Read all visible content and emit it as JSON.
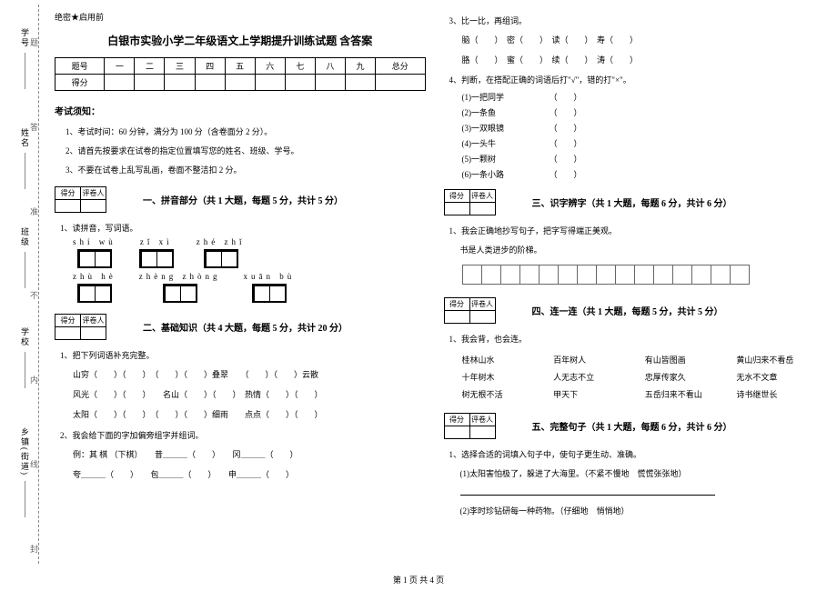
{
  "binding": {
    "labels": [
      "乡镇(街道)",
      "学校",
      "班级",
      "姓名",
      "学号"
    ],
    "marks": [
      "封",
      "线",
      "内",
      "不",
      "准",
      "答",
      "题"
    ]
  },
  "header": {
    "secret": "绝密★启用前",
    "title": "白银市实验小学二年级语文上学期提升训练试题 含答案"
  },
  "score_table": {
    "row1": [
      "题号",
      "一",
      "二",
      "三",
      "四",
      "五",
      "六",
      "七",
      "八",
      "九",
      "总分"
    ],
    "row2_label": "得分"
  },
  "notice": {
    "head": "考试须知：",
    "items": [
      "1、考试时间：60 分钟，满分为 100 分（含卷面分 2 分）。",
      "2、请首先按要求在试卷的指定位置填写您的姓名、班级、学号。",
      "3、不要在试卷上乱写乱画，卷面不整洁扣 2 分。"
    ]
  },
  "score_box": {
    "c1": "得分",
    "c2": "评卷人"
  },
  "sec1": {
    "title": "一、拼音部分（共 1 大题，每题 5 分，共计 5 分）",
    "q1": "1、读拼音，写词语。",
    "pinyin": [
      [
        "shí  wù",
        "zǐ  xì",
        "zhé  zhǐ"
      ],
      [
        "zhù  hè",
        "zhèng zhòng",
        "xuān  bù"
      ]
    ]
  },
  "sec2": {
    "title": "二、基础知识（共 4 大题，每题 5 分，共计 20 分）",
    "q1": "1、把下列词语补充完整。",
    "lines": [
      "山穷（　　）（　　）　（　　）（　　）叠翠　　（　　）（　　）云散",
      "风光（　　）（　　）　　名山（　　）（　　）　热情（　　）（　　）",
      "太阳（　　）（　　）　（　　）（　　）细雨　　点点（　　）（　　）"
    ],
    "q2": "2、我会给下面的字加偏旁组字并组词。",
    "example": "例：其 棋 （下棋）　　昔＿＿＿（　　）　　冈＿＿＿（　　）",
    "line2b": "夸＿＿＿（　　）　　包＿＿＿（　　）　　申＿＿＿（　　）",
    "q3": "3、比一比，再组词。",
    "pairs": [
      "脑（　　）　密（　　）　读（　　）　寿（　　）",
      "胳（　　）　蜜（　　）　续（　　）　涛（　　）"
    ],
    "q4": "4、判断，在搭配正确的词语后打\"√\"，错的打\"×\"。",
    "tf": [
      "(1)一把同学　　　　　　（　　）",
      "(2)一条鱼　　　　　　　（　　）",
      "(3)一双眼镜　　　　　　（　　）",
      "(4)一头牛　　　　　　　（　　）",
      "(5)一颗树　　　　　　　（　　）",
      "(6)一条小路　　　　　　（　　）"
    ]
  },
  "sec3": {
    "title": "三、识字辨字（共 1 大题，每题 6 分，共计 6 分）",
    "q1": "1、我会正确地抄写句子，把字写得端正美观。",
    "sentence": "书是人类进步的阶梯。"
  },
  "sec4": {
    "title": "四、连一连（共 1 大题，每题 5 分，共计 5 分）",
    "q1": "1、我会背，也会连。",
    "items": [
      "桂林山水",
      "百年树人",
      "有山皆图画",
      "黄山归来不看岳",
      "十年树木",
      "人无志不立",
      "忠厚传家久",
      "无水不文章",
      "树无根不活",
      "甲天下",
      "五岳归来不看山",
      "诗书继世长"
    ]
  },
  "sec5": {
    "title": "五、完整句子（共 1 大题，每题 6 分，共计 6 分）",
    "q1": "1、选择合适的词填入句子中，使句子更生动、准确。",
    "s1": "(1)太阳害怕极了，躲进了大海里。（不紧不慢地　慌慌张张地）",
    "s2": "(2)李时珍钻研每一种药物。（仔细地　悄悄地）"
  },
  "footer": "第 1 页 共 4 页"
}
